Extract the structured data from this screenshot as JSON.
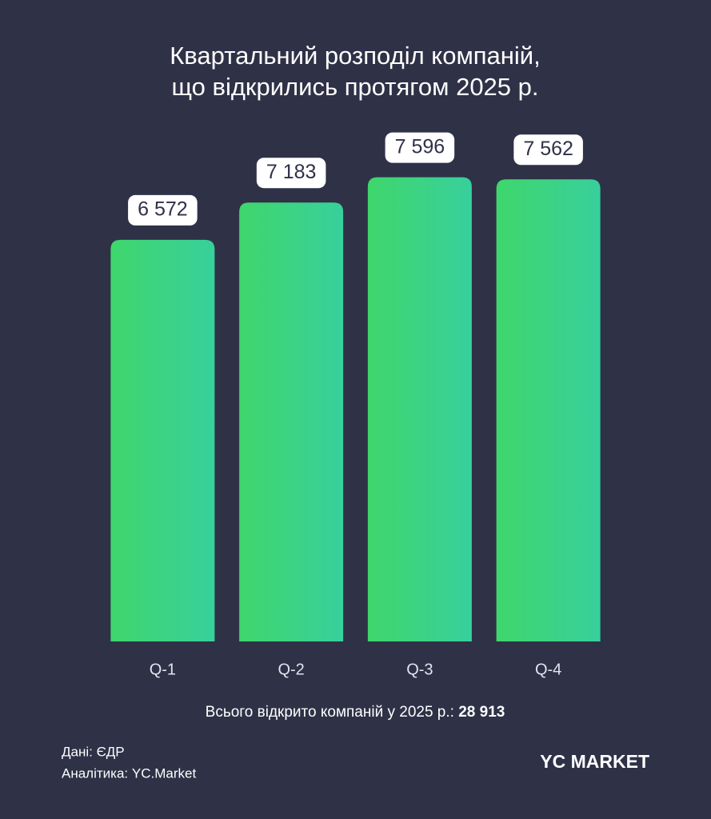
{
  "chart_data": {
    "type": "bar",
    "title": [
      "Квартальний розподіл компаній,",
      "що відкрились протягом 2025 р."
    ],
    "categories": [
      "Q-1",
      "Q-2",
      "Q-3",
      "Q-4"
    ],
    "values": [
      6572,
      7183,
      7596,
      7562
    ],
    "value_labels": [
      "6 572",
      "7 183",
      "7 596",
      "7 562"
    ],
    "colors": [
      "#3fd66c",
      "#38d09c"
    ],
    "ylim": [
      0,
      10000
    ],
    "note": "Всього відкрито компаній у 2025 р.:",
    "note_value": "28 913",
    "source": [
      "Дані: ЄДР",
      "Аналітика: YC.Market"
    ],
    "logo": [
      "YC",
      "MARKET"
    ]
  }
}
